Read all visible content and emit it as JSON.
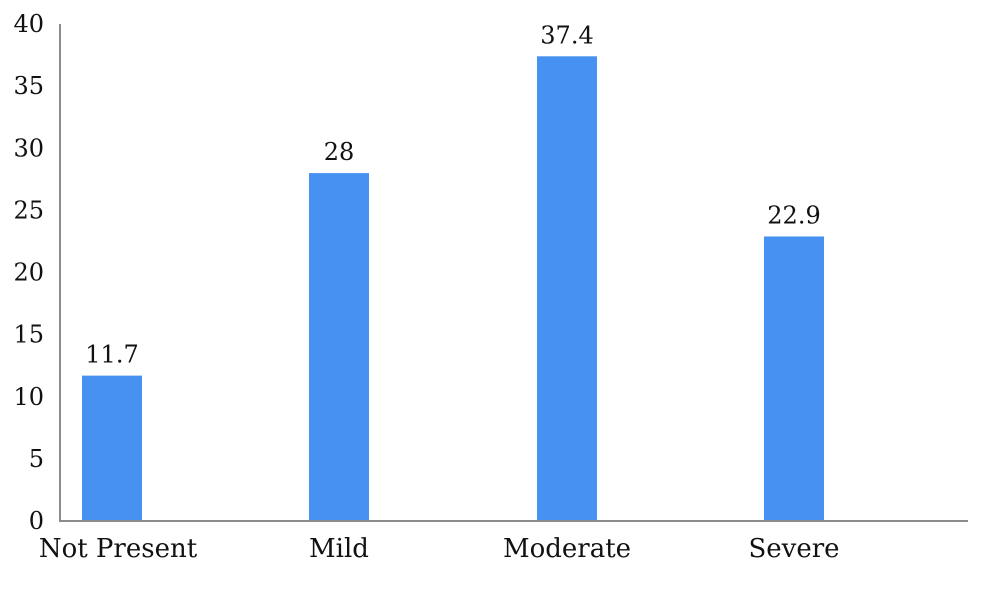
{
  "chart_data": {
    "type": "bar",
    "title": "",
    "xlabel": "",
    "ylabel": "",
    "categories": [
      "Not Present",
      "Mild",
      "Moderate",
      "Severe"
    ],
    "values": [
      11.7,
      28,
      37.4,
      22.9
    ],
    "value_labels": [
      "11.7",
      "28",
      "37.4",
      "22.9"
    ],
    "ylim": [
      0,
      40
    ],
    "yticks": [
      0,
      5,
      10,
      15,
      20,
      25,
      30,
      35,
      40
    ],
    "grid": false,
    "legend": "none",
    "bar_color": "#4691f2",
    "axis_color": "#8c8c8c"
  }
}
